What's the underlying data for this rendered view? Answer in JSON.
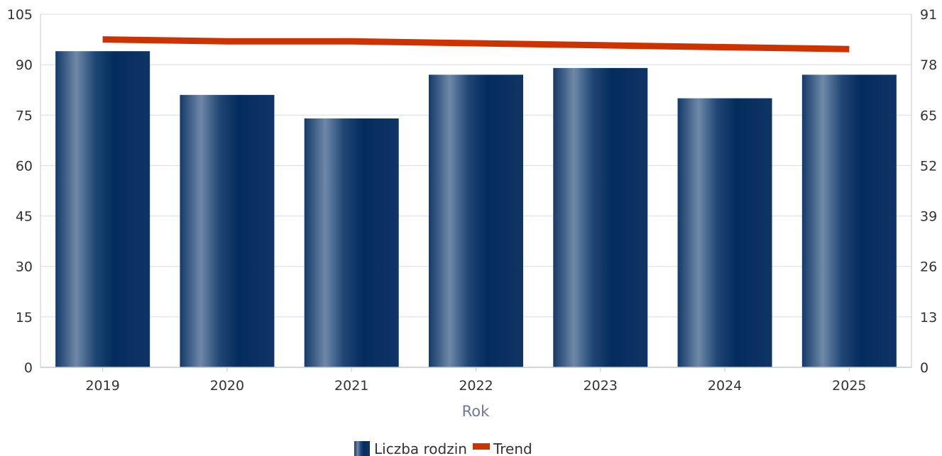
{
  "chart_data": {
    "type": "bar",
    "categories": [
      "2019",
      "2020",
      "2021",
      "2022",
      "2023",
      "2024",
      "2025"
    ],
    "series": [
      {
        "name": "Liczba rodzin",
        "type": "bar",
        "axis": "left",
        "values": [
          94,
          81,
          74,
          87,
          89,
          80,
          87
        ]
      },
      {
        "name": "Trend",
        "type": "line",
        "axis": "right",
        "values": [
          84.5,
          84,
          84,
          83.5,
          83,
          82.5,
          82
        ]
      }
    ],
    "xlabel": "Rok",
    "y_left": {
      "ticks": [
        0,
        15,
        30,
        45,
        60,
        75,
        90,
        105
      ],
      "ylim": [
        0,
        105
      ]
    },
    "y_right": {
      "ticks": [
        0,
        13,
        26,
        39,
        52,
        65,
        78,
        91
      ],
      "ylim": [
        0,
        91
      ]
    },
    "grid": true,
    "legend_position": "bottom-center",
    "colors": {
      "bar_dark": "#0b2f5e",
      "bar_light": "#6f88a8",
      "line": "#cc3300",
      "grid": "#d9dce6",
      "axis": "#c5c9d6"
    }
  }
}
